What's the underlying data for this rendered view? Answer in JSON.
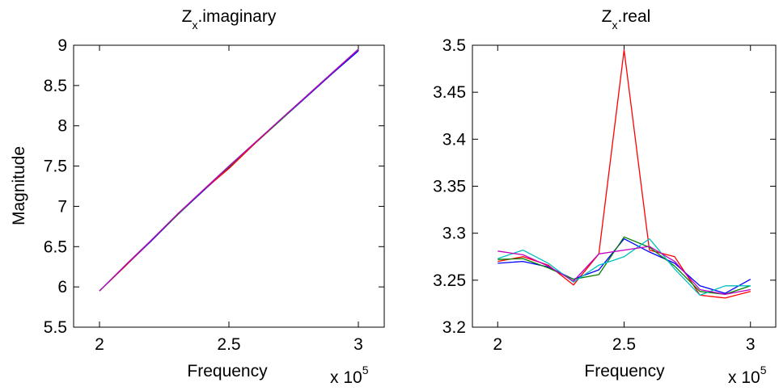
{
  "chart_data": [
    {
      "type": "line",
      "title": {
        "main": "Z",
        "subscript": "x",
        "suffix": ".imaginary"
      },
      "xlabel": "Frequency",
      "ylabel": "Magnitude",
      "x_multiplier": {
        "base": "x 10",
        "exponent": "5"
      },
      "xlim": [
        1.9,
        3.1
      ],
      "ylim": [
        5.5,
        9
      ],
      "xticks": [
        2,
        2.5,
        3
      ],
      "xtick_labels": [
        "2",
        "2.5",
        "3"
      ],
      "yticks": [
        5.5,
        6,
        6.5,
        7,
        7.5,
        8,
        8.5,
        9
      ],
      "ytick_labels": [
        "5.5",
        "6",
        "6.5",
        "7",
        "7.5",
        "8",
        "8.5",
        "9"
      ],
      "grid": false,
      "x": [
        2.0,
        2.1,
        2.2,
        2.3,
        2.4,
        2.5,
        2.6,
        2.7,
        2.8,
        2.9,
        3.0
      ],
      "series": [
        {
          "color": "#0000ff",
          "values": [
            5.95,
            6.26,
            6.57,
            6.89,
            7.19,
            7.48,
            7.78,
            8.07,
            8.36,
            8.65,
            8.93
          ]
        },
        {
          "color": "#008000",
          "values": [
            5.95,
            6.26,
            6.58,
            6.89,
            7.2,
            7.49,
            7.78,
            8.07,
            8.37,
            8.66,
            8.95
          ]
        },
        {
          "color": "#ff0000",
          "values": [
            5.95,
            6.26,
            6.58,
            6.9,
            7.2,
            7.47,
            7.78,
            8.08,
            8.37,
            8.66,
            8.95
          ]
        },
        {
          "color": "#00bfbf",
          "values": [
            5.95,
            6.27,
            6.58,
            6.9,
            7.2,
            7.5,
            7.79,
            8.08,
            8.37,
            8.66,
            8.95
          ]
        },
        {
          "color": "#bf00bf",
          "values": [
            5.95,
            6.27,
            6.58,
            6.9,
            7.2,
            7.5,
            7.79,
            8.08,
            8.37,
            8.66,
            8.95
          ]
        }
      ]
    },
    {
      "type": "line",
      "title": {
        "main": "Z",
        "subscript": "x",
        "suffix": ".real"
      },
      "xlabel": "Frequency",
      "ylabel": "",
      "x_multiplier": {
        "base": "x 10",
        "exponent": "5"
      },
      "xlim": [
        1.9,
        3.1
      ],
      "ylim": [
        3.2,
        3.5
      ],
      "xticks": [
        2,
        2.5,
        3
      ],
      "xtick_labels": [
        "2",
        "2.5",
        "3"
      ],
      "yticks": [
        3.2,
        3.25,
        3.3,
        3.35,
        3.4,
        3.45,
        3.5
      ],
      "ytick_labels": [
        "3.2",
        "3.25",
        "3.3",
        "3.35",
        "3.4",
        "3.45",
        "3.5"
      ],
      "grid": false,
      "x": [
        2.0,
        2.1,
        2.2,
        2.3,
        2.4,
        2.5,
        2.6,
        2.7,
        2.8,
        2.9,
        3.0
      ],
      "series": [
        {
          "color": "#ff0000",
          "values": [
            3.27,
            3.275,
            3.266,
            3.245,
            3.278,
            3.495,
            3.282,
            3.275,
            3.234,
            3.231,
            3.238
          ]
        },
        {
          "color": "#0000ff",
          "values": [
            3.268,
            3.27,
            3.264,
            3.251,
            3.261,
            3.294,
            3.28,
            3.268,
            3.244,
            3.236,
            3.251
          ]
        },
        {
          "color": "#008000",
          "values": [
            3.272,
            3.273,
            3.263,
            3.251,
            3.256,
            3.296,
            3.285,
            3.265,
            3.238,
            3.235,
            3.244
          ]
        },
        {
          "color": "#00bfbf",
          "values": [
            3.273,
            3.282,
            3.268,
            3.248,
            3.266,
            3.275,
            3.294,
            3.262,
            3.234,
            3.244,
            3.244
          ]
        },
        {
          "color": "#bf00bf",
          "values": [
            3.281,
            3.277,
            3.265,
            3.249,
            3.278,
            3.282,
            3.286,
            3.27,
            3.24,
            3.235,
            3.24
          ]
        }
      ]
    }
  ]
}
